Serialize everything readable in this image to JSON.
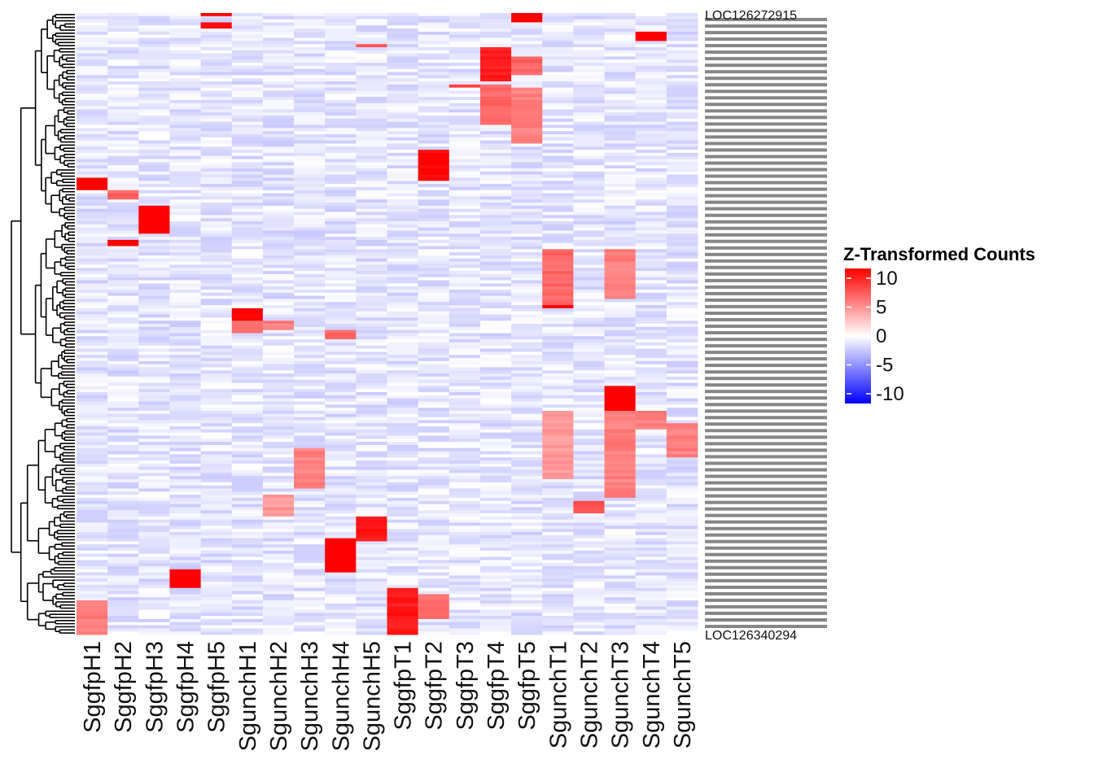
{
  "chart_data": {
    "type": "heatmap",
    "title": "",
    "columns": [
      "SggfpH1",
      "SggfpH2",
      "SggfpH3",
      "SggfpH4",
      "SggfpH5",
      "SgunchH1",
      "SgunchH2",
      "SgunchH3",
      "SgunchH4",
      "SgunchH5",
      "SggfpT1",
      "SggfpT2",
      "SggfpT3",
      "SggfpT4",
      "SggfpT5",
      "SgunchT1",
      "SgunchT2",
      "SgunchT3",
      "SgunchT4",
      "SgunchT5"
    ],
    "row_labels_first": "LOC126272915",
    "row_labels_last": "LOC126340294",
    "n_rows": 200,
    "background_value": -1,
    "blocks": [
      {
        "col": 4,
        "r0": 0,
        "r1": 1,
        "v": 10
      },
      {
        "col": 4,
        "r0": 3,
        "r1": 5,
        "v": 9
      },
      {
        "col": 14,
        "r0": 0,
        "r1": 3,
        "v": 11
      },
      {
        "col": 18,
        "r0": 6,
        "r1": 9,
        "v": 10
      },
      {
        "col": 9,
        "r0": 10,
        "r1": 11,
        "v": 7
      },
      {
        "col": 13,
        "r0": 11,
        "r1": 22,
        "v": 9
      },
      {
        "col": 14,
        "r0": 14,
        "r1": 20,
        "v": 6
      },
      {
        "col": 12,
        "r0": 23,
        "r1": 24,
        "v": 8
      },
      {
        "col": 13,
        "r0": 23,
        "r1": 36,
        "v": 6
      },
      {
        "col": 14,
        "r0": 24,
        "r1": 42,
        "v": 5
      },
      {
        "col": 11,
        "r0": 44,
        "r1": 54,
        "v": 10
      },
      {
        "col": 0,
        "r0": 53,
        "r1": 57,
        "v": 11
      },
      {
        "col": 1,
        "r0": 57,
        "r1": 60,
        "v": 6
      },
      {
        "col": 2,
        "r0": 62,
        "r1": 71,
        "v": 11
      },
      {
        "col": 1,
        "r0": 73,
        "r1": 75,
        "v": 10
      },
      {
        "col": 15,
        "r0": 76,
        "r1": 94,
        "v": 6
      },
      {
        "col": 15,
        "r0": 94,
        "r1": 95,
        "v": 10
      },
      {
        "col": 17,
        "r0": 76,
        "r1": 92,
        "v": 5
      },
      {
        "col": 5,
        "r0": 95,
        "r1": 99,
        "v": 10
      },
      {
        "col": 5,
        "r0": 99,
        "r1": 103,
        "v": 6
      },
      {
        "col": 6,
        "r0": 99,
        "r1": 102,
        "v": 5
      },
      {
        "col": 8,
        "r0": 102,
        "r1": 105,
        "v": 6
      },
      {
        "col": 17,
        "r0": 120,
        "r1": 128,
        "v": 11
      },
      {
        "col": 15,
        "r0": 128,
        "r1": 150,
        "v": 4
      },
      {
        "col": 17,
        "r0": 128,
        "r1": 156,
        "v": 5
      },
      {
        "col": 18,
        "r0": 128,
        "r1": 134,
        "v": 5
      },
      {
        "col": 19,
        "r0": 132,
        "r1": 143,
        "v": 5
      },
      {
        "col": 7,
        "r0": 140,
        "r1": 153,
        "v": 5
      },
      {
        "col": 6,
        "r0": 155,
        "r1": 162,
        "v": 4
      },
      {
        "col": 16,
        "r0": 157,
        "r1": 161,
        "v": 7
      },
      {
        "col": 9,
        "r0": 162,
        "r1": 170,
        "v": 9
      },
      {
        "col": 8,
        "r0": 169,
        "r1": 180,
        "v": 11
      },
      {
        "col": 3,
        "r0": 179,
        "r1": 185,
        "v": 11
      },
      {
        "col": 10,
        "r0": 185,
        "r1": 200,
        "v": 9
      },
      {
        "col": 11,
        "r0": 187,
        "r1": 195,
        "v": 6
      },
      {
        "col": 0,
        "r0": 189,
        "r1": 200,
        "v": 5
      }
    ],
    "legend": {
      "title": "Z-Transformed Counts",
      "ticks": [
        "10",
        "5",
        "0",
        "-5",
        "-10"
      ],
      "max_color": "#ff0000",
      "mid_color": "#ffffff",
      "min_color": "#0000ff"
    }
  }
}
